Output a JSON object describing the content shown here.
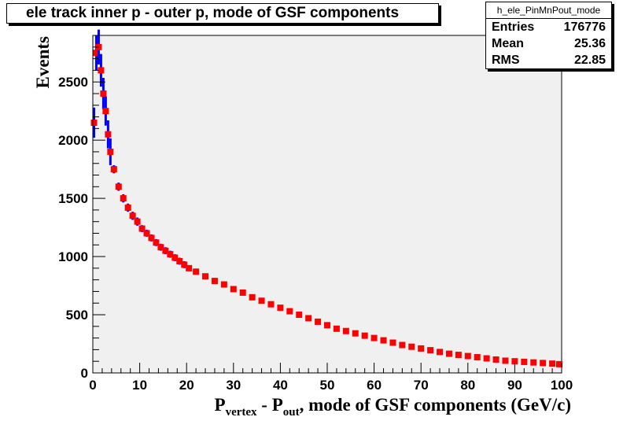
{
  "stats": {
    "name": "h_ele_PinMnPout_mode",
    "rows": [
      {
        "label": "Entries",
        "value": "176776"
      },
      {
        "label": "Mean",
        "value": "25.36"
      },
      {
        "label": "RMS",
        "value": "22.85"
      }
    ]
  },
  "colors": {
    "frame_fill": "#f0f0f0",
    "marker": "#ff0000",
    "error_bar": "#0000ff"
  },
  "chart_data": {
    "type": "scatter",
    "title": "ele track inner p - outer p, mode of GSF components",
    "xlabel": {
      "main": "P",
      "sub1": "vertex",
      "mid": " - P",
      "sub2": "out",
      "rest": ", mode of GSF components (GeV/c)"
    },
    "ylabel": "Events",
    "xlim": [
      0,
      100
    ],
    "ylim": [
      0,
      2900
    ],
    "xticks": [
      0,
      10,
      20,
      30,
      40,
      50,
      60,
      70,
      80,
      90,
      100
    ],
    "yticks": [
      0,
      500,
      1000,
      1500,
      2000,
      2500
    ],
    "grid": false,
    "series": [
      {
        "marker": "square",
        "x": [
          0.25,
          0.75,
          1.25,
          1.75,
          2.25,
          2.75,
          3.25,
          3.75,
          4.5,
          5.5,
          6.5,
          7.5,
          8.5,
          9.5,
          10.5,
          11.5,
          12.5,
          13.5,
          14.5,
          15.5,
          16.5,
          17.5,
          18.5,
          19.5,
          20.5,
          22,
          24,
          26,
          28,
          30,
          32,
          34,
          36,
          38,
          40,
          42,
          44,
          46,
          48,
          50,
          52,
          54,
          56,
          58,
          60,
          62,
          64,
          66,
          68,
          70,
          72,
          74,
          76,
          78,
          80,
          82,
          84,
          86,
          88,
          90,
          92,
          94,
          96,
          98,
          99.5
        ],
        "y": [
          2150,
          2750,
          2800,
          2600,
          2400,
          2250,
          2050,
          1900,
          1750,
          1600,
          1500,
          1420,
          1350,
          1300,
          1240,
          1200,
          1160,
          1120,
          1080,
          1050,
          1020,
          990,
          960,
          930,
          900,
          870,
          830,
          790,
          760,
          720,
          690,
          650,
          620,
          590,
          560,
          530,
          500,
          470,
          440,
          410,
          380,
          360,
          340,
          320,
          300,
          280,
          260,
          240,
          225,
          210,
          195,
          180,
          165,
          155,
          145,
          135,
          125,
          115,
          105,
          100,
          95,
          90,
          85,
          80,
          75
        ],
        "yerr": [
          130,
          150,
          150,
          140,
          135,
          125,
          120,
          115,
          35,
          35,
          35,
          35,
          35,
          35,
          30,
          30,
          30,
          30,
          30,
          30,
          30,
          30,
          30,
          30,
          25,
          25,
          25,
          25,
          25,
          25,
          25,
          25,
          25,
          25,
          20,
          20,
          20,
          20,
          20,
          20,
          20,
          20,
          20,
          20,
          15,
          15,
          15,
          15,
          15,
          15,
          15,
          15,
          15,
          15,
          10,
          10,
          10,
          10,
          10,
          10,
          10,
          10,
          10,
          10,
          10
        ]
      }
    ]
  }
}
